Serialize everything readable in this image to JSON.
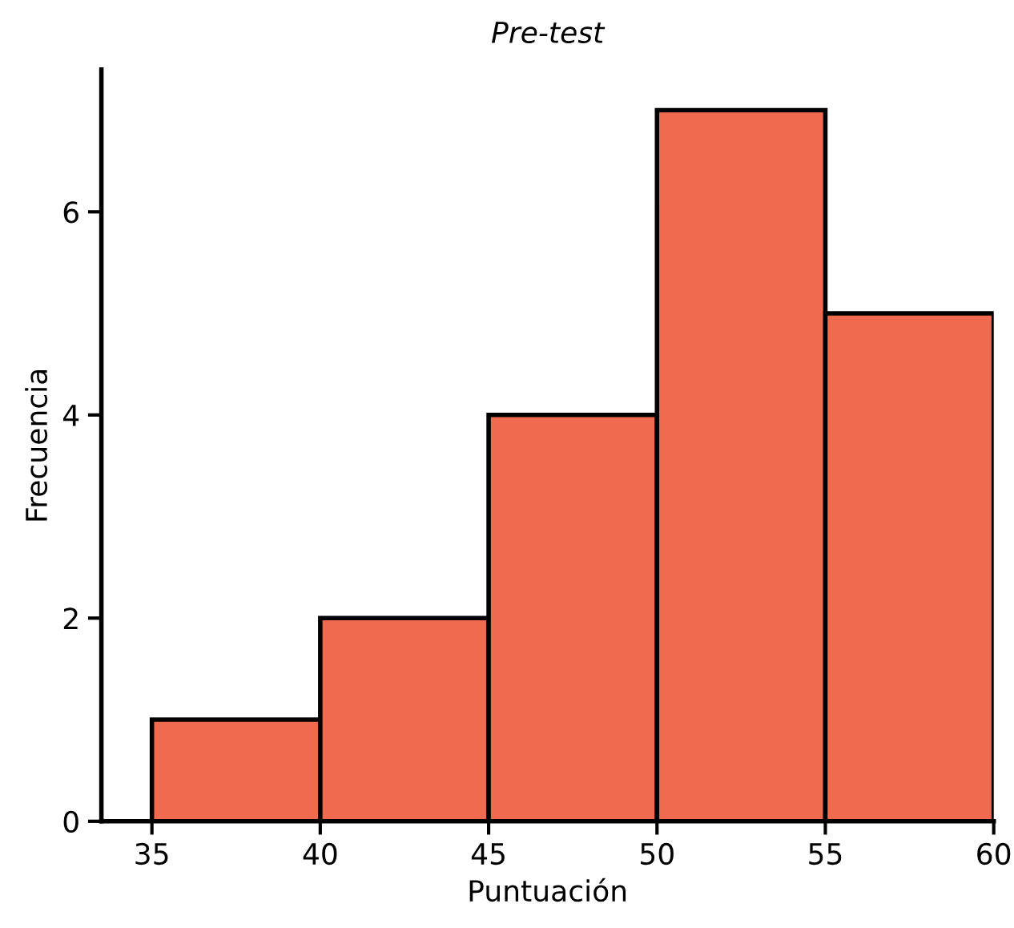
{
  "chart_data": {
    "type": "histogram",
    "title": "Pre-test",
    "xlabel": "Puntuación",
    "ylabel": "Frecuencia",
    "bins": [
      35,
      40,
      45,
      50,
      55,
      60
    ],
    "values": [
      1,
      2,
      4,
      7,
      5
    ],
    "color": "#f06a50",
    "xlim": [
      33.5,
      60
    ],
    "ylim": [
      0,
      7.4
    ],
    "xticks": [
      35,
      40,
      45,
      50,
      55,
      60
    ],
    "yticks": [
      0,
      2,
      4,
      6
    ],
    "grid": false,
    "legend": false
  }
}
